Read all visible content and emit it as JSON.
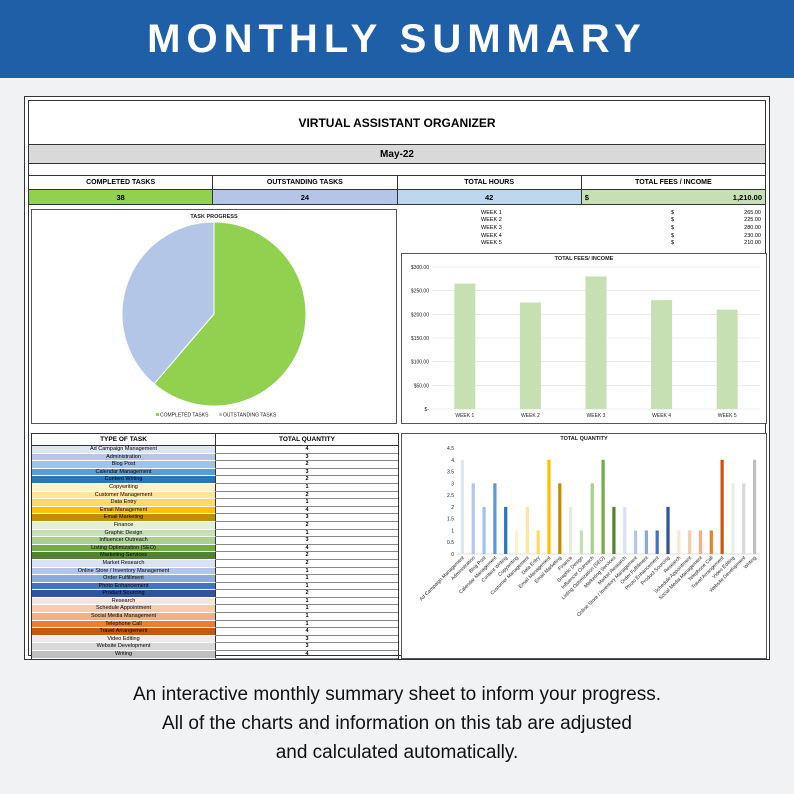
{
  "banner": {
    "title": "MONTHLY SUMMARY"
  },
  "sheet": {
    "title": "VIRTUAL ASSISTANT ORGANIZER",
    "month": "May-22",
    "kpis": [
      {
        "label": "COMPLETED TASKS",
        "value": "38"
      },
      {
        "label": "OUTSTANDING TASKS",
        "value": "24"
      },
      {
        "label": "TOTAL HOURS",
        "value": "42"
      },
      {
        "label": "TOTAL FEES / INCOME",
        "currency": "$",
        "value": "1,210.00"
      }
    ],
    "weeks": [
      {
        "name": "WEEK 1",
        "currency": "$",
        "amount": "265.00"
      },
      {
        "name": "WEEK 2",
        "currency": "$",
        "amount": "225.00"
      },
      {
        "name": "WEEK 3",
        "currency": "$",
        "amount": "280.00"
      },
      {
        "name": "WEEK 4",
        "currency": "$",
        "amount": "230.00"
      },
      {
        "name": "WEEK 5",
        "currency": "$",
        "amount": "210.00"
      }
    ],
    "table_headers": {
      "type": "TYPE OF TASK",
      "qty": "TOTAL QUANTITY"
    }
  },
  "caption": {
    "line1": "An interactive monthly summary sheet to inform your progress.",
    "line2": "All of the charts and information on this tab are adjusted",
    "line3": "and calculated automatically."
  },
  "chart_data": [
    {
      "type": "pie",
      "title": "TASK PROGRESS",
      "categories": [
        "COMPLETED TASKS",
        "OUTSTANDING TASKS"
      ],
      "values": [
        38,
        24
      ],
      "colors": [
        "#92d050",
        "#b4c6e7"
      ],
      "legend": "bottom"
    },
    {
      "type": "bar",
      "title": "TOTAL FEES/ INCOME",
      "categories": [
        "WEEK 1",
        "WEEK 2",
        "WEEK 3",
        "WEEK 4",
        "WEEK 5"
      ],
      "values": [
        265,
        225,
        280,
        230,
        210
      ],
      "ylim": [
        0,
        300
      ],
      "yticks": [
        "$-",
        "$50.00",
        "$100.00",
        "$150.00",
        "$200.00",
        "$250.00",
        "$300.00"
      ],
      "color": "#c6e0b4",
      "grid": true
    },
    {
      "type": "bar",
      "title": "TOTAL QUANTITY",
      "categories": [
        "Ad Campaign Management",
        "Administration",
        "Blog Post",
        "Calendar Management",
        "Content Writing",
        "Copywriting",
        "Customer Management",
        "Data Entry",
        "Email Management",
        "Email Marketing",
        "Finance",
        "Graphic Design",
        "Influencer Outreach",
        "Listing Optimization (SEO)",
        "Marketing Services",
        "Market Research",
        "Online Store / Inventory Management",
        "Order Fulfillment",
        "Photo Enhancement",
        "Product Sourcing",
        "Research",
        "Schedule Appointment",
        "Social Media Management",
        "Telephone Call",
        "Travel Arrangement",
        "Video Editing",
        "Website Development",
        "Writing"
      ],
      "values": [
        4,
        3,
        2,
        3,
        2,
        1,
        2,
        1,
        4,
        3,
        2,
        1,
        3,
        4,
        2,
        2,
        1,
        1,
        1,
        2,
        1,
        1,
        1,
        1,
        4,
        3,
        3,
        4
      ],
      "colors": [
        "#dde6f4",
        "#b4c6e7",
        "#9dc3e6",
        "#5b9bd5",
        "#2e75b6",
        "#fff2cc",
        "#ffe699",
        "#ffd966",
        "#ffc000",
        "#bf8f00",
        "#e2efda",
        "#c6e0b4",
        "#a9d08e",
        "#70ad47",
        "#548235",
        "#d9e1f2",
        "#b4c6e7",
        "#8ea9db",
        "#4472c4",
        "#305496",
        "#fce4d6",
        "#f8cbad",
        "#f4b084",
        "#ed7d31",
        "#c65911",
        "#ededed",
        "#d9d9d9",
        "#bfbfbf"
      ],
      "ylim": [
        0,
        4.5
      ],
      "yticks": [
        "0",
        "0.5",
        "1",
        "1.5",
        "2",
        "2.5",
        "3",
        "3.5",
        "4",
        "4.5"
      ]
    }
  ]
}
